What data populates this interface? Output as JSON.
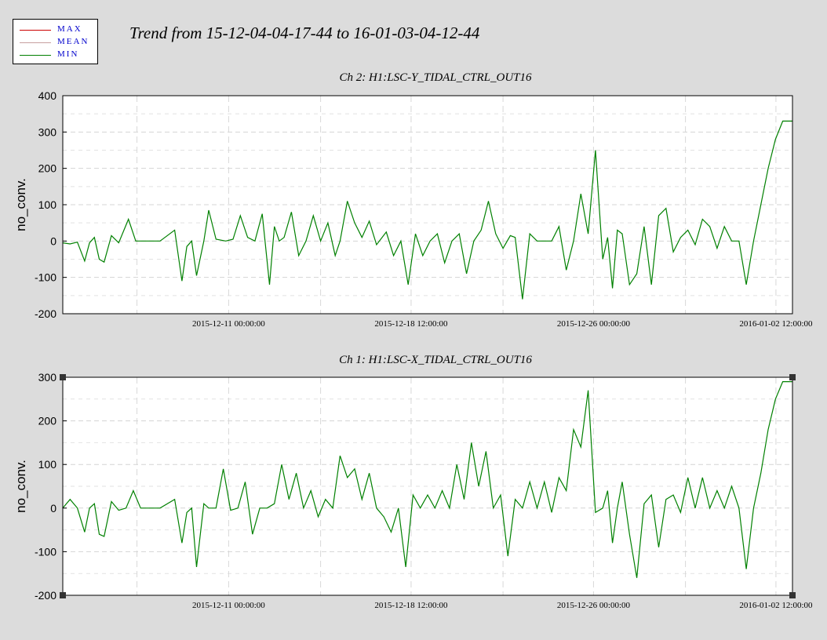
{
  "legend": {
    "items": [
      {
        "label": "MAX",
        "color": "#cc0000"
      },
      {
        "label": "MEAN",
        "color": "#c8a0a0"
      },
      {
        "label": "MIN",
        "color": "#008000"
      }
    ]
  },
  "title": "Trend from 15-12-04-04-17-44 to 16-01-03-04-12-44",
  "chart_data": [
    {
      "type": "line",
      "title": "Ch 2: H1:LSC-Y_TIDAL_CTRL_OUT16",
      "ylabel": "no_conv.",
      "ylim": [
        -200,
        400
      ],
      "yticks": [
        "400",
        "300",
        "200",
        "100",
        "0",
        "-100",
        "-200"
      ],
      "xlim": [
        0,
        30
      ],
      "xticks": [
        {
          "x": 6.82,
          "label": "2015-12-11 00:00:00"
        },
        {
          "x": 14.32,
          "label": "2015-12-18 12:00:00"
        },
        {
          "x": 21.82,
          "label": "2015-12-26 00:00:00"
        },
        {
          "x": 29.32,
          "label": "2016-01-02 12:00:00"
        }
      ],
      "grid": true,
      "series": [
        {
          "name": "MIN",
          "color": "#008000",
          "x": [
            0,
            0.3,
            0.6,
            0.9,
            1.1,
            1.3,
            1.5,
            1.7,
            2.0,
            2.3,
            2.7,
            3.0,
            3.5,
            4.0,
            4.6,
            4.9,
            5.1,
            5.3,
            5.5,
            5.8,
            6.0,
            6.3,
            6.7,
            7.0,
            7.3,
            7.6,
            7.9,
            8.2,
            8.5,
            8.7,
            8.9,
            9.1,
            9.4,
            9.7,
            10.0,
            10.3,
            10.6,
            10.9,
            11.2,
            11.4,
            11.7,
            12.0,
            12.3,
            12.6,
            12.9,
            13.3,
            13.6,
            13.9,
            14.2,
            14.5,
            14.8,
            15.1,
            15.4,
            15.7,
            16.0,
            16.3,
            16.6,
            16.9,
            17.2,
            17.5,
            17.8,
            18.1,
            18.4,
            18.6,
            18.9,
            19.2,
            19.5,
            19.8,
            20.1,
            20.4,
            20.7,
            21.0,
            21.3,
            21.6,
            21.9,
            22.2,
            22.4,
            22.6,
            22.8,
            23.0,
            23.3,
            23.6,
            23.9,
            24.2,
            24.5,
            24.8,
            25.1,
            25.4,
            25.7,
            26.0,
            26.3,
            26.6,
            26.9,
            27.2,
            27.5,
            27.8,
            28.1,
            28.4,
            28.7,
            29.0,
            29.3,
            29.6,
            30.0
          ],
          "y": [
            -5,
            -8,
            -3,
            -55,
            -5,
            10,
            -50,
            -58,
            15,
            -5,
            60,
            0,
            0,
            0,
            30,
            -110,
            -15,
            0,
            -95,
            0,
            85,
            5,
            0,
            5,
            70,
            10,
            0,
            75,
            -120,
            40,
            0,
            10,
            80,
            -40,
            0,
            70,
            0,
            50,
            -40,
            0,
            110,
            50,
            10,
            55,
            -10,
            25,
            -40,
            0,
            -120,
            20,
            -40,
            0,
            20,
            -60,
            0,
            20,
            -90,
            0,
            30,
            110,
            20,
            -20,
            15,
            10,
            -160,
            20,
            0,
            0,
            0,
            40,
            -80,
            0,
            130,
            20,
            250,
            -50,
            10,
            -130,
            30,
            20,
            -120,
            -90,
            40,
            -120,
            70,
            90,
            -30,
            10,
            30,
            -10,
            60,
            40,
            -20,
            40,
            0,
            0,
            -120,
            0,
            100,
            200,
            280,
            330,
            330
          ]
        }
      ]
    },
    {
      "type": "line",
      "title": "Ch 1: H1:LSC-X_TIDAL_CTRL_OUT16",
      "ylabel": "no_conv.",
      "ylim": [
        -200,
        300
      ],
      "yticks": [
        "300",
        "200",
        "100",
        "0",
        "-100",
        "-200"
      ],
      "xlim": [
        0,
        30
      ],
      "xticks": [
        {
          "x": 6.82,
          "label": "2015-12-11 00:00:00"
        },
        {
          "x": 14.32,
          "label": "2015-12-18 12:00:00"
        },
        {
          "x": 21.82,
          "label": "2015-12-26 00:00:00"
        },
        {
          "x": 29.32,
          "label": "2016-01-02 12:00:00"
        }
      ],
      "grid": true,
      "series": [
        {
          "name": "MIN",
          "color": "#008000",
          "x": [
            0,
            0.3,
            0.6,
            0.9,
            1.1,
            1.3,
            1.5,
            1.7,
            2.0,
            2.3,
            2.6,
            2.9,
            3.2,
            3.5,
            4.0,
            4.6,
            4.9,
            5.1,
            5.3,
            5.5,
            5.8,
            6.0,
            6.3,
            6.6,
            6.9,
            7.2,
            7.5,
            7.8,
            8.1,
            8.4,
            8.7,
            9.0,
            9.3,
            9.6,
            9.9,
            10.2,
            10.5,
            10.8,
            11.1,
            11.4,
            11.7,
            12.0,
            12.3,
            12.6,
            12.9,
            13.2,
            13.5,
            13.8,
            14.1,
            14.4,
            14.7,
            15.0,
            15.3,
            15.6,
            15.9,
            16.2,
            16.5,
            16.8,
            17.1,
            17.4,
            17.7,
            18.0,
            18.3,
            18.6,
            18.9,
            19.2,
            19.5,
            19.8,
            20.1,
            20.4,
            20.7,
            21.0,
            21.3,
            21.6,
            21.9,
            22.2,
            22.4,
            22.6,
            22.8,
            23.0,
            23.3,
            23.6,
            23.9,
            24.2,
            24.5,
            24.8,
            25.1,
            25.4,
            25.7,
            26.0,
            26.3,
            26.6,
            26.9,
            27.2,
            27.5,
            27.8,
            28.1,
            28.4,
            28.7,
            29.0,
            29.3,
            29.6,
            30.0
          ],
          "y": [
            0,
            20,
            0,
            -55,
            0,
            10,
            -60,
            -65,
            15,
            -5,
            0,
            40,
            0,
            0,
            0,
            20,
            -80,
            -10,
            0,
            -135,
            10,
            0,
            0,
            90,
            -5,
            0,
            60,
            -60,
            0,
            0,
            10,
            100,
            20,
            80,
            0,
            40,
            -20,
            20,
            0,
            120,
            70,
            90,
            20,
            80,
            0,
            -20,
            -55,
            0,
            -135,
            30,
            0,
            30,
            0,
            40,
            0,
            100,
            20,
            150,
            50,
            130,
            0,
            30,
            -110,
            20,
            0,
            60,
            0,
            60,
            -10,
            70,
            40,
            180,
            140,
            270,
            -10,
            0,
            40,
            -80,
            0,
            60,
            -60,
            -160,
            10,
            30,
            -90,
            20,
            30,
            -10,
            70,
            0,
            70,
            0,
            40,
            0,
            50,
            0,
            -140,
            0,
            80,
            180,
            250,
            290,
            290
          ]
        }
      ]
    }
  ]
}
